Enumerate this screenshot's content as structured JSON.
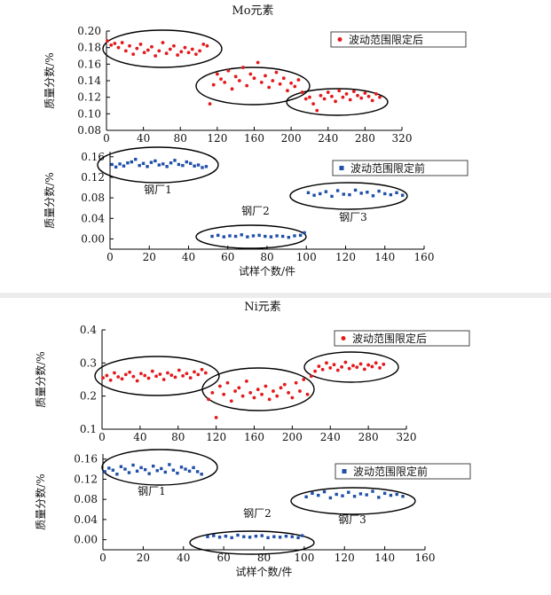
{
  "colors": {
    "after": "#e41a1c",
    "before": "#1f4fa8"
  },
  "chart_data": [
    {
      "type": "scatter",
      "title": "Mo元素",
      "ylabel": "质量分数/%",
      "xlim": [
        0,
        320
      ],
      "ylim": [
        0.08,
        0.2
      ],
      "x_ticks": [
        "0",
        "40",
        "80",
        "120",
        "160",
        "200",
        "240",
        "280",
        "320"
      ],
      "y_ticks": [
        "0.08",
        "0.10",
        "0.12",
        "0.14",
        "0.16",
        "0.18",
        "0.20"
      ],
      "legend": "top-right",
      "series": [
        {
          "name": "波动范围限定后",
          "marker": "circle",
          "color": "#e41a1c",
          "x": [
            1,
            5,
            9,
            13,
            17,
            21,
            25,
            29,
            33,
            37,
            41,
            45,
            49,
            53,
            57,
            61,
            65,
            69,
            73,
            77,
            81,
            85,
            89,
            93,
            97,
            101,
            105,
            109,
            112,
            116,
            120,
            124,
            128,
            132,
            136,
            140,
            144,
            148,
            152,
            156,
            160,
            164,
            168,
            172,
            176,
            180,
            184,
            188,
            192,
            196,
            200,
            204,
            208,
            212,
            216,
            220,
            224,
            228,
            232,
            236,
            240,
            244,
            248,
            252,
            256,
            260,
            264,
            268,
            272,
            276,
            280,
            284,
            288,
            292,
            296
          ],
          "y": [
            0.188,
            0.183,
            0.185,
            0.18,
            0.186,
            0.176,
            0.182,
            0.172,
            0.179,
            0.184,
            0.174,
            0.177,
            0.181,
            0.17,
            0.176,
            0.186,
            0.173,
            0.178,
            0.182,
            0.171,
            0.175,
            0.18,
            0.174,
            0.178,
            0.172,
            0.176,
            0.184,
            0.182,
            0.112,
            0.135,
            0.148,
            0.142,
            0.138,
            0.152,
            0.13,
            0.145,
            0.14,
            0.156,
            0.134,
            0.148,
            0.143,
            0.162,
            0.138,
            0.146,
            0.132,
            0.14,
            0.15,
            0.136,
            0.143,
            0.128,
            0.137,
            0.133,
            0.141,
            0.126,
            0.118,
            0.12,
            0.112,
            0.104,
            0.122,
            0.118,
            0.126,
            0.121,
            0.115,
            0.128,
            0.12,
            0.124,
            0.117,
            0.127,
            0.122,
            0.119,
            0.125,
            0.121,
            0.116,
            0.124,
            0.12
          ]
        },
        {
          "name": "",
          "marker": "none",
          "x": [],
          "y": []
        }
      ],
      "annotation_groups": [
        "",
        "",
        ""
      ]
    },
    {
      "type": "scatter",
      "ylabel": "质量分数/%",
      "xlabel": "试样个数/件",
      "xlim": [
        0,
        160
      ],
      "ylim": [
        -0.02,
        0.17
      ],
      "x_ticks": [
        "0",
        "20",
        "40",
        "60",
        "80",
        "100",
        "120",
        "140",
        "160"
      ],
      "y_ticks": [
        "0.00",
        "0.04",
        "0.08",
        "0.12",
        "0.16"
      ],
      "legend": "top-right",
      "series": [
        {
          "name": "波动范围限定前",
          "marker": "square",
          "color": "#1f4fa8",
          "x": [
            1,
            3,
            5,
            7,
            9,
            11,
            13,
            15,
            17,
            19,
            21,
            23,
            25,
            27,
            29,
            31,
            33,
            35,
            37,
            39,
            41,
            43,
            45,
            47,
            49,
            52,
            55,
            58,
            61,
            64,
            67,
            70,
            73,
            76,
            79,
            82,
            85,
            88,
            91,
            94,
            97,
            99,
            101,
            104,
            107,
            110,
            113,
            116,
            119,
            122,
            125,
            128,
            131,
            134,
            137,
            140,
            143,
            146,
            149
          ],
          "y": [
            0.145,
            0.14,
            0.146,
            0.142,
            0.148,
            0.15,
            0.155,
            0.143,
            0.147,
            0.141,
            0.149,
            0.152,
            0.144,
            0.146,
            0.141,
            0.148,
            0.153,
            0.145,
            0.143,
            0.15,
            0.147,
            0.142,
            0.144,
            0.139,
            0.141,
            0.005,
            0.007,
            0.004,
            0.006,
            0.005,
            0.008,
            0.004,
            0.006,
            0.007,
            0.005,
            0.004,
            0.006,
            0.005,
            0.003,
            0.006,
            0.007,
            0.012,
            0.09,
            0.085,
            0.088,
            0.092,
            0.083,
            0.094,
            0.087,
            0.086,
            0.095,
            0.089,
            0.091,
            0.084,
            0.093,
            0.088,
            0.086,
            0.09,
            0.085
          ]
        }
      ],
      "plant_labels": [
        "钢厂1",
        "钢厂2",
        "钢厂3"
      ]
    },
    {
      "type": "scatter",
      "title": "Ni元素",
      "ylabel": "质量分数/%",
      "xlim": [
        0,
        320
      ],
      "ylim": [
        0.1,
        0.4
      ],
      "x_ticks": [
        "0",
        "40",
        "80",
        "120",
        "160",
        "200",
        "240",
        "280",
        "320"
      ],
      "y_ticks": [
        "0.1",
        "0.2",
        "0.3",
        "0.4"
      ],
      "legend": "top-right",
      "series": [
        {
          "name": "波动范围限定后",
          "marker": "circle",
          "color": "#e41a1c",
          "x": [
            1,
            5,
            9,
            13,
            17,
            21,
            25,
            29,
            33,
            37,
            41,
            45,
            49,
            53,
            57,
            61,
            65,
            69,
            73,
            77,
            81,
            85,
            89,
            93,
            97,
            101,
            105,
            109,
            112,
            116,
            120,
            124,
            128,
            132,
            136,
            140,
            144,
            148,
            152,
            156,
            160,
            164,
            168,
            172,
            176,
            180,
            184,
            188,
            192,
            196,
            200,
            204,
            208,
            212,
            216,
            220,
            224,
            228,
            232,
            236,
            240,
            244,
            248,
            252,
            256,
            260,
            264,
            268,
            272,
            276,
            280,
            284,
            288,
            292,
            296
          ],
          "y": [
            0.255,
            0.262,
            0.248,
            0.27,
            0.258,
            0.252,
            0.265,
            0.272,
            0.259,
            0.246,
            0.268,
            0.262,
            0.254,
            0.275,
            0.26,
            0.266,
            0.25,
            0.27,
            0.263,
            0.257,
            0.278,
            0.261,
            0.268,
            0.255,
            0.273,
            0.265,
            0.28,
            0.27,
            0.19,
            0.21,
            0.135,
            0.23,
            0.205,
            0.24,
            0.185,
            0.215,
            0.225,
            0.2,
            0.245,
            0.21,
            0.195,
            0.22,
            0.205,
            0.23,
            0.19,
            0.215,
            0.2,
            0.225,
            0.235,
            0.21,
            0.195,
            0.24,
            0.215,
            0.25,
            0.205,
            0.26,
            0.275,
            0.29,
            0.28,
            0.3,
            0.285,
            0.295,
            0.278,
            0.288,
            0.302,
            0.283,
            0.292,
            0.287,
            0.297,
            0.281,
            0.294,
            0.289,
            0.3,
            0.285,
            0.296
          ]
        }
      ]
    },
    {
      "type": "scatter",
      "ylabel": "质量分数/%",
      "xlabel": "试样个数/件",
      "xlim": [
        0,
        160
      ],
      "ylim": [
        -0.02,
        0.17
      ],
      "x_ticks": [
        "0",
        "20",
        "40",
        "60",
        "80",
        "100",
        "120",
        "140",
        "160"
      ],
      "y_ticks": [
        "0.00",
        "0.04",
        "0.08",
        "0.12",
        "0.16"
      ],
      "legend": "top-right",
      "series": [
        {
          "name": "波动范围限定前",
          "marker": "square",
          "color": "#1f4fa8",
          "x": [
            1,
            3,
            5,
            7,
            9,
            11,
            13,
            15,
            17,
            19,
            21,
            23,
            25,
            27,
            29,
            31,
            33,
            35,
            37,
            39,
            41,
            43,
            45,
            47,
            49,
            52,
            55,
            58,
            61,
            64,
            67,
            70,
            73,
            76,
            79,
            82,
            85,
            88,
            91,
            94,
            97,
            99,
            101,
            104,
            107,
            110,
            113,
            116,
            119,
            122,
            125,
            128,
            131,
            134,
            137,
            140,
            143,
            146,
            149
          ],
          "y": [
            0.135,
            0.142,
            0.138,
            0.13,
            0.145,
            0.14,
            0.133,
            0.148,
            0.136,
            0.143,
            0.139,
            0.131,
            0.146,
            0.137,
            0.141,
            0.134,
            0.149,
            0.138,
            0.132,
            0.144,
            0.14,
            0.136,
            0.143,
            0.135,
            0.13,
            0.006,
            0.008,
            0.005,
            0.007,
            0.004,
            0.009,
            0.006,
            0.005,
            0.007,
            0.008,
            0.004,
            0.006,
            0.005,
            0.007,
            0.006,
            0.004,
            0.008,
            0.085,
            0.092,
            0.088,
            0.095,
            0.083,
            0.09,
            0.087,
            0.094,
            0.086,
            0.091,
            0.089,
            0.096,
            0.084,
            0.092,
            0.088,
            0.09,
            0.086
          ]
        }
      ],
      "plant_labels": [
        "钢厂1",
        "钢厂2",
        "钢厂3"
      ]
    }
  ]
}
